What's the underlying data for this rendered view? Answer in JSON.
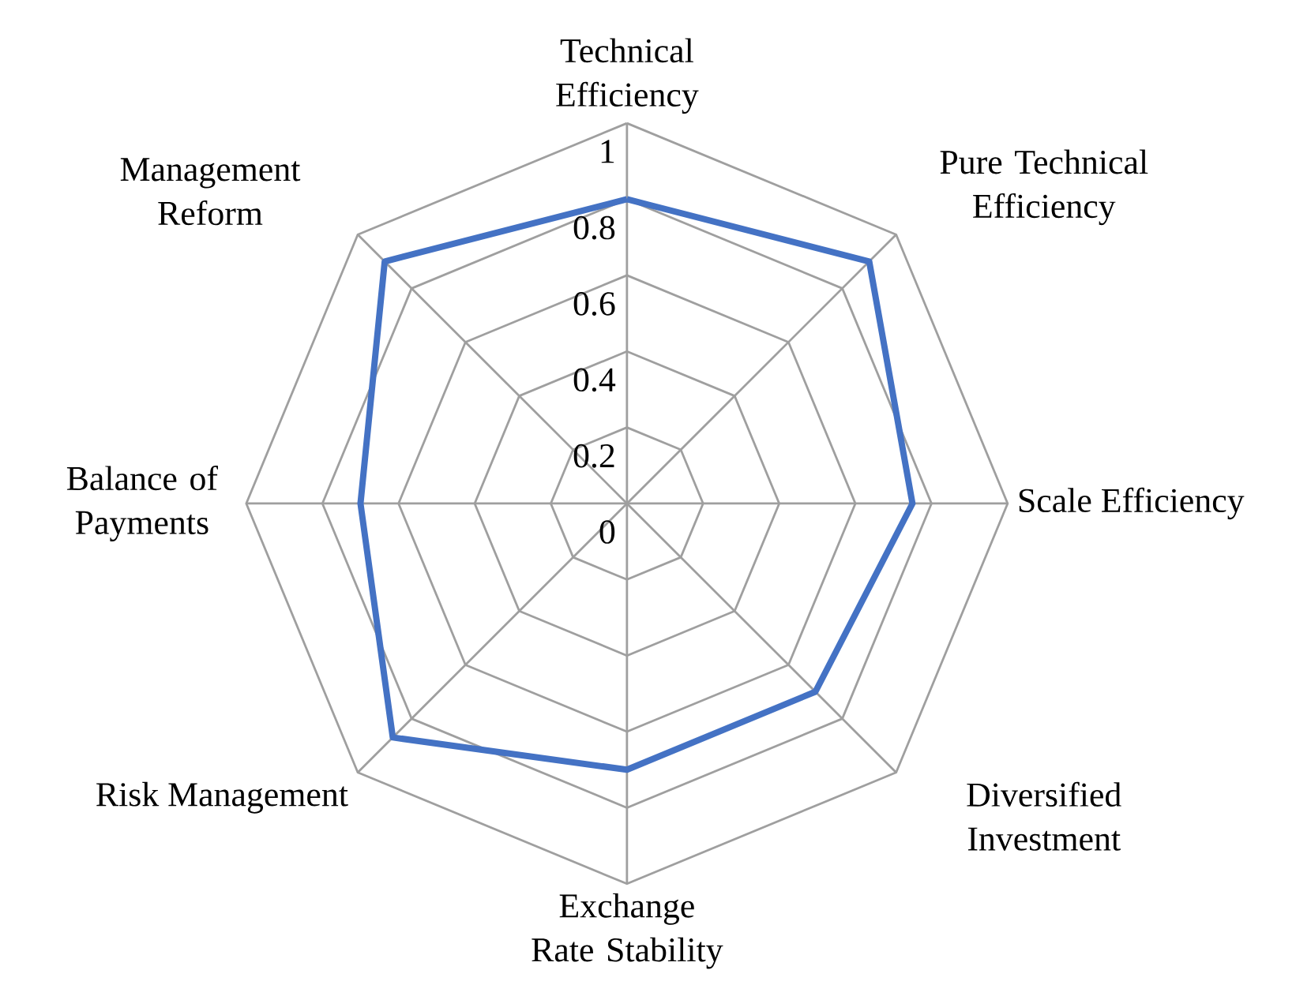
{
  "chart_data": {
    "type": "radar",
    "categories": [
      "Technical Efficiency",
      "Pure Technical Efficiency",
      "Scale Efficiency",
      "Diversified Investment",
      "Exchange Rate Stability",
      "Risk Management",
      "Balance of Payments",
      "Management Reform"
    ],
    "series": [
      {
        "color": "#4472c4",
        "values": [
          0.8,
          0.9,
          0.75,
          0.7,
          0.7,
          0.87,
          0.7,
          0.9
        ]
      }
    ],
    "ylim": [
      0,
      1
    ],
    "yticks": [
      0,
      0.2,
      0.4,
      0.6,
      0.8,
      1
    ],
    "grid": true
  }
}
